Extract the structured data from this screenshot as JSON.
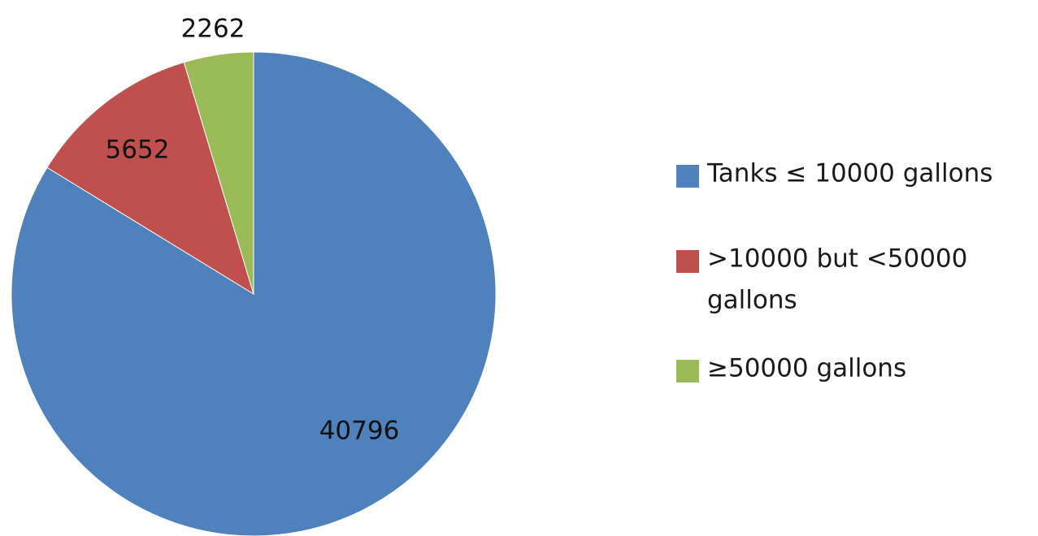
{
  "chart_data": {
    "type": "pie",
    "slices": [
      {
        "label": "Tanks ≤ 10000 gallons",
        "value": 40796,
        "color": "#4F81BD"
      },
      {
        "label": ">10000 but <50000 gallons",
        "value": 5652,
        "color": "#C0504D"
      },
      {
        "label": "≥50000 gallons",
        "value": 2262,
        "color": "#9BBB59"
      }
    ],
    "data_labels": [
      "40796",
      "5652",
      "2262"
    ],
    "legend": {
      "placement": "right",
      "entries": [
        {
          "lines": [
            "Tanks ≤ 10000 gallons"
          ],
          "color": "#4F81BD"
        },
        {
          "lines": [
            ">10000 but <50000",
            "gallons"
          ],
          "color": "#C0504D"
        },
        {
          "lines": [
            "≥50000 gallons"
          ],
          "color": "#9BBB59"
        }
      ]
    },
    "start_angle": "12 o'clock",
    "direction": "clockwise"
  }
}
